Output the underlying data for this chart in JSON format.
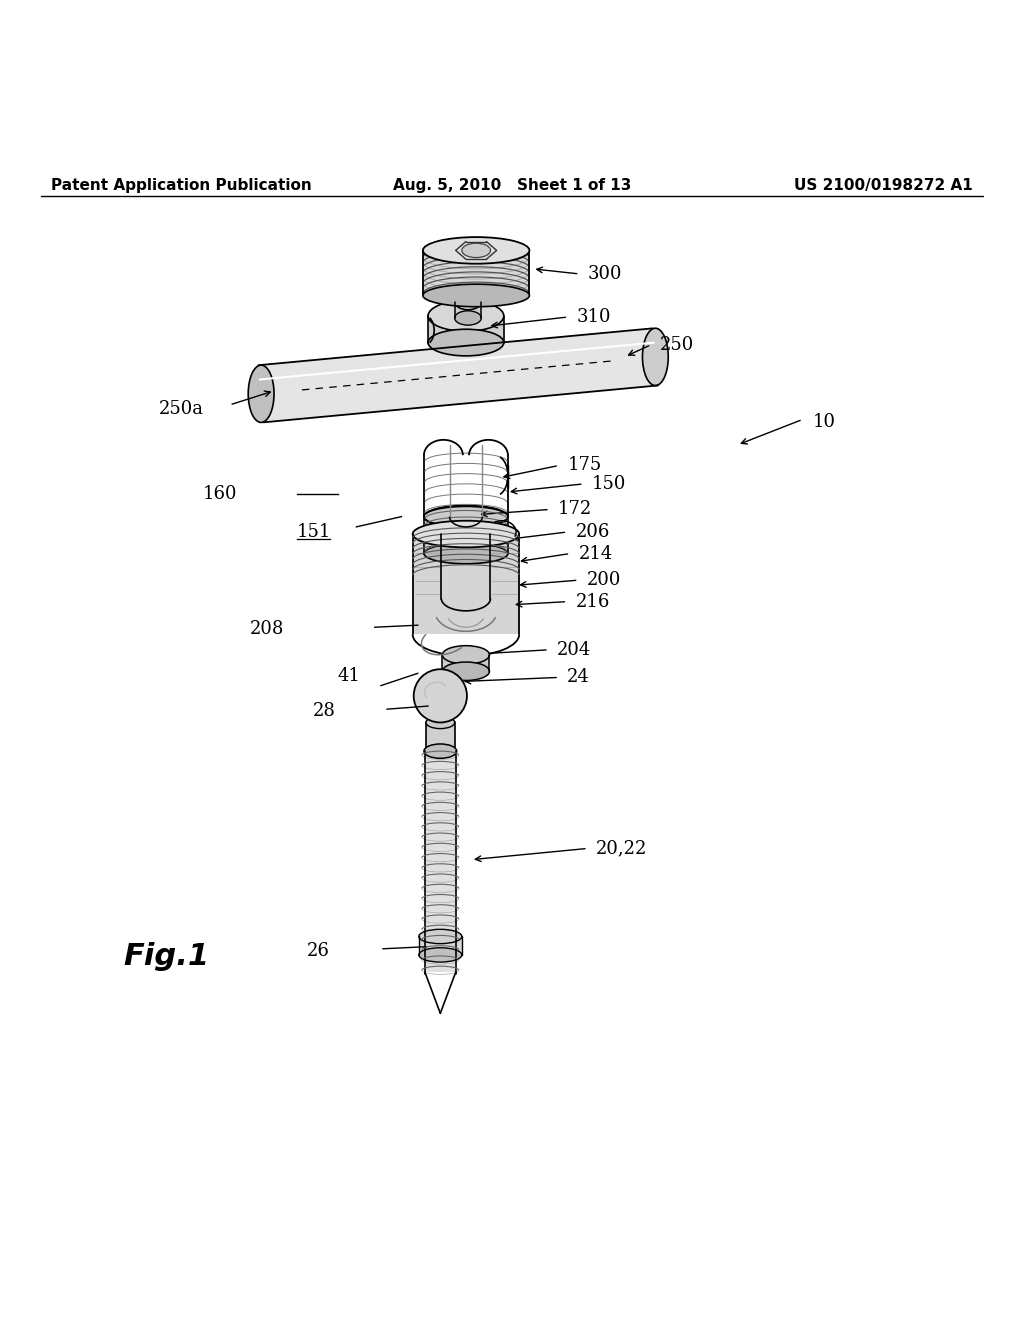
{
  "bg_color": "#ffffff",
  "header_left": "Patent Application Publication",
  "header_center": "Aug. 5, 2010   Sheet 1 of 13",
  "header_right": "US 2100/0198272 A1",
  "fig_label": "Fig.1",
  "title_fontsize": 11,
  "label_fontsize": 13,
  "fig_label_fontsize": 22
}
